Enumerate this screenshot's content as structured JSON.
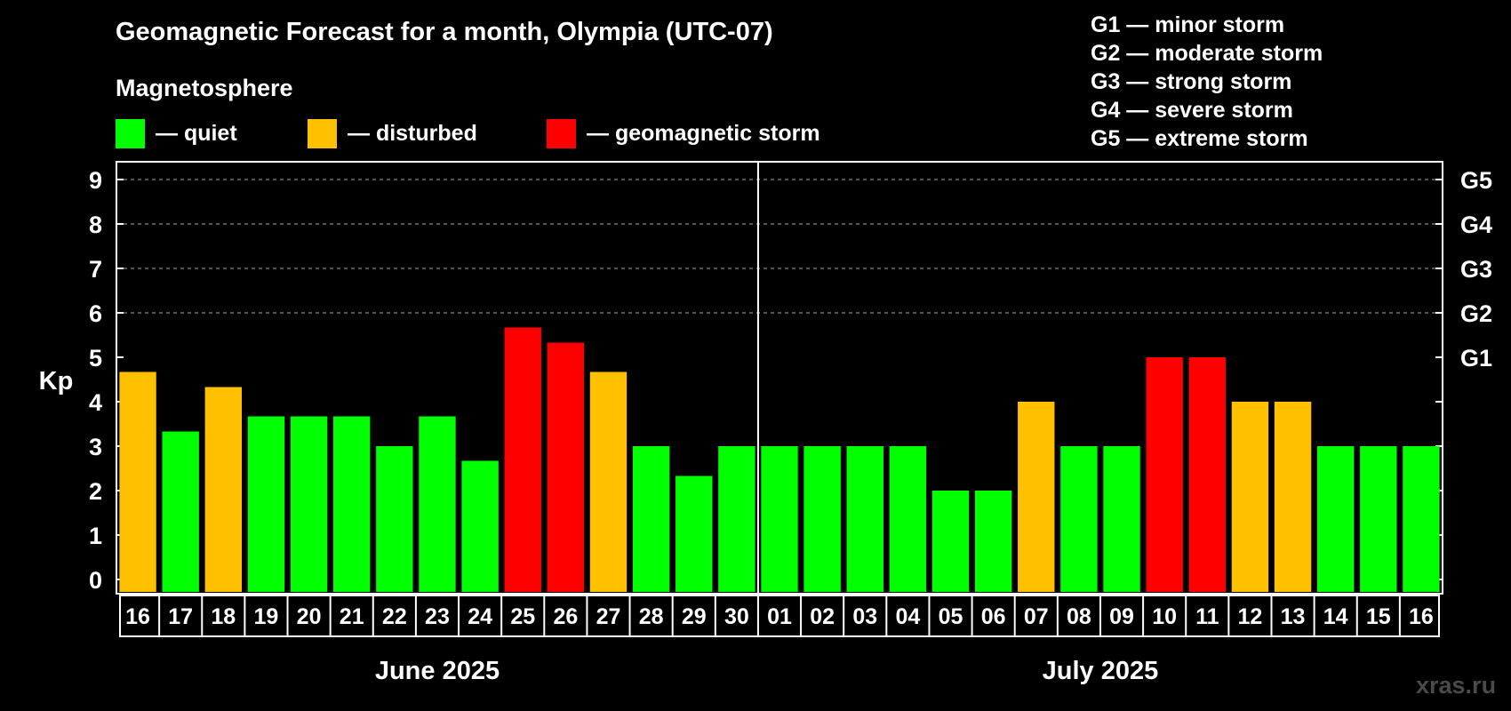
{
  "header": {
    "title": "Geomagnetic Forecast for a month, Olympia (UTC-07)",
    "subtitle": "Magnetosphere"
  },
  "legend": {
    "items": [
      {
        "label": "— quiet",
        "color": "#00ff00"
      },
      {
        "label": "— disturbed",
        "color": "#ffc000"
      },
      {
        "label": "— geomagnetic storm",
        "color": "#ff0000"
      }
    ]
  },
  "g_legend": [
    "G1 — minor storm",
    "G2 — moderate storm",
    "G3 — strong storm",
    "G4 — severe storm",
    "G5 — extreme storm"
  ],
  "watermark": "xras.ru",
  "chart_data": {
    "type": "bar",
    "title": "Geomagnetic Forecast for a month, Olympia (UTC-07)",
    "ylabel": "Kp",
    "ylim": [
      0,
      9
    ],
    "yticks": [
      0,
      1,
      2,
      3,
      4,
      5,
      6,
      7,
      8,
      9
    ],
    "right_axis": [
      {
        "value": 5,
        "label": "G1"
      },
      {
        "value": 6,
        "label": "G2"
      },
      {
        "value": 7,
        "label": "G3"
      },
      {
        "value": 8,
        "label": "G4"
      },
      {
        "value": 9,
        "label": "G5"
      }
    ],
    "grid": "horizontal dashed at 6, 7, 8, 9",
    "month_groups": [
      {
        "label": "June 2025",
        "count": 15
      },
      {
        "label": "July 2025",
        "count": 16
      }
    ],
    "categories": [
      "16",
      "17",
      "18",
      "19",
      "20",
      "21",
      "22",
      "23",
      "24",
      "25",
      "26",
      "27",
      "28",
      "29",
      "30",
      "01",
      "02",
      "03",
      "04",
      "05",
      "06",
      "07",
      "08",
      "09",
      "10",
      "11",
      "12",
      "13",
      "14",
      "15",
      "16"
    ],
    "values": [
      4.67,
      3.33,
      4.33,
      3.67,
      3.67,
      3.67,
      3.0,
      3.67,
      2.67,
      5.67,
      5.33,
      4.67,
      3.0,
      2.33,
      3.0,
      3.0,
      3.0,
      3.0,
      3.0,
      2.0,
      2.0,
      4.0,
      3.0,
      3.0,
      5.0,
      5.0,
      4.0,
      4.0,
      3.0,
      3.0,
      3.0
    ],
    "levels": [
      "disturbed",
      "quiet",
      "disturbed",
      "quiet",
      "quiet",
      "quiet",
      "quiet",
      "quiet",
      "quiet",
      "storm",
      "storm",
      "disturbed",
      "quiet",
      "quiet",
      "quiet",
      "quiet",
      "quiet",
      "quiet",
      "quiet",
      "quiet",
      "quiet",
      "disturbed",
      "quiet",
      "quiet",
      "storm",
      "storm",
      "disturbed",
      "disturbed",
      "quiet",
      "quiet",
      "quiet"
    ],
    "level_colors": {
      "quiet": "#00ff00",
      "disturbed": "#ffc000",
      "storm": "#ff0000"
    }
  }
}
